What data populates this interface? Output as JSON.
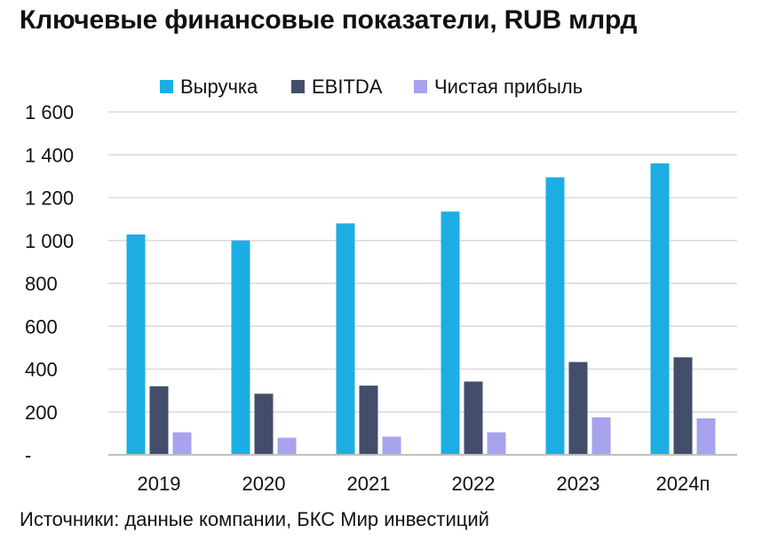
{
  "title": "Ключевые финансовые показатели, RUB млрд",
  "source": "Источники: данные компании, БКС Мир инвестиций",
  "colors": {
    "revenue": "#1caee3",
    "ebitda": "#434e6b",
    "net_income": "#a7a3ec",
    "grid": "#d9d9d9",
    "axis": "#bfbfbf"
  },
  "chart_data": {
    "type": "bar",
    "title": "Ключевые финансовые показатели, RUB млрд",
    "xlabel": "",
    "ylabel": "",
    "categories": [
      "2019",
      "2020",
      "2021",
      "2022",
      "2023",
      "2024п"
    ],
    "series": [
      {
        "name": "Выручка",
        "color": "#1caee3",
        "values": [
          1028,
          1000,
          1080,
          1135,
          1295,
          1360
        ]
      },
      {
        "name": "EBITDA",
        "color": "#434e6b",
        "values": [
          320,
          285,
          323,
          342,
          433,
          455
        ]
      },
      {
        "name": "Чистая прибыль",
        "color": "#a7a3ec",
        "values": [
          105,
          80,
          85,
          105,
          175,
          170
        ]
      }
    ],
    "ylim": [
      0,
      1600
    ],
    "yticks": [
      0,
      200,
      400,
      600,
      800,
      1000,
      1200,
      1400,
      1600
    ],
    "ytick_labels": [
      "-",
      "200",
      "400",
      "600",
      "800",
      "1 000",
      "1 200",
      "1 400",
      "1 600"
    ],
    "grid": true,
    "legend_position": "top-center"
  }
}
